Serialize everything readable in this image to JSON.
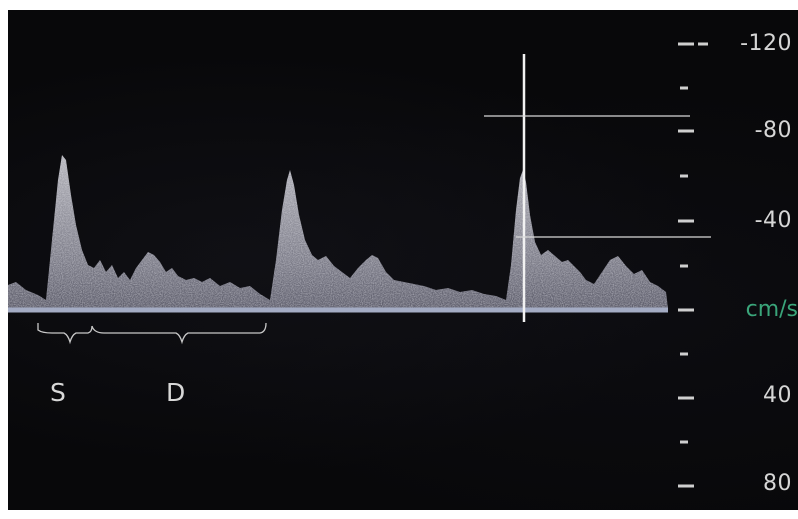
{
  "scale": {
    "labels": [
      {
        "id": "neg120",
        "text": "-120"
      },
      {
        "id": "neg80",
        "text": "-80"
      },
      {
        "id": "neg40",
        "text": "-40"
      },
      {
        "id": "unit",
        "text": "cm/s"
      },
      {
        "id": "pos40",
        "text": "40"
      },
      {
        "id": "pos80",
        "text": "80"
      }
    ]
  },
  "phases": {
    "systole": "S",
    "diastole": "D"
  },
  "colors": {
    "background": "#08080a",
    "waveform": "#cfcfd8",
    "baseline": "#9fa8c0",
    "scale_text": "#d6d6d6",
    "unit_text": "#3aa57a"
  }
}
